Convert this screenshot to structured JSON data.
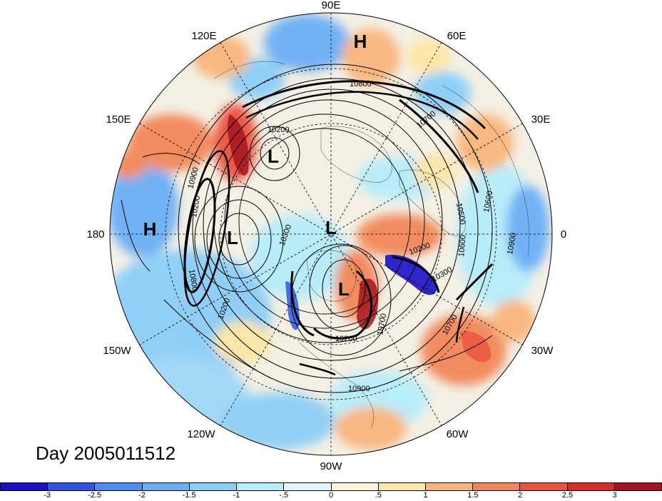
{
  "map": {
    "longitude_labels": {
      "top": "90E",
      "upper_left": "120E",
      "upper_right": "60E",
      "left_upper": "150E",
      "right_upper": "30E",
      "left": "180",
      "right": "0",
      "left_lower": "150W",
      "right_lower": "30W",
      "lower_left": "120W",
      "lower_right": "60W",
      "bottom": "90W"
    },
    "pressure_systems": [
      {
        "type": "H"
      },
      {
        "type": "H"
      },
      {
        "type": "L"
      },
      {
        "type": "L"
      },
      {
        "type": "L"
      },
      {
        "type": "L"
      }
    ],
    "contour_labels": [
      "10800",
      "10700",
      "10200",
      "10900",
      "10500",
      "10200",
      "10300",
      "10600",
      "10900",
      "10200",
      "10700",
      "10700",
      "10900",
      "10600",
      "10800",
      "10300",
      "10200",
      "10200"
    ],
    "colors": {
      "background": "#ffffff",
      "contour": "#000000"
    }
  },
  "day_label": "Day 2005011512",
  "colorbar": {
    "colors": [
      "#1a0fc8",
      "#2f55e6",
      "#4c8cf0",
      "#6aaef5",
      "#8ccdf7",
      "#b6ecfb",
      "#e0f6fb",
      "#fdf6d8",
      "#fde6a6",
      "#f9b47c",
      "#f28658",
      "#ea523e",
      "#d42d2a",
      "#a71421"
    ],
    "tick_labels": [
      "-3",
      "-2.5",
      "-2",
      "-1.5",
      "-1",
      "-.5",
      "0",
      ".5",
      "1",
      "1.5",
      "2",
      "2.5",
      "3"
    ]
  }
}
